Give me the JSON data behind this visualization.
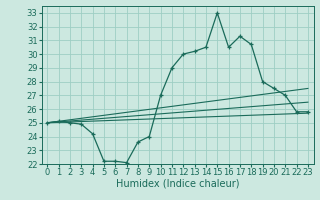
{
  "xlabel": "Humidex (Indice chaleur)",
  "ylabel": "",
  "background_color": "#cce8e0",
  "grid_color": "#9ecec4",
  "line_color": "#1a6b5a",
  "xlim": [
    -0.5,
    23.5
  ],
  "ylim": [
    22,
    33.5
  ],
  "yticks": [
    22,
    23,
    24,
    25,
    26,
    27,
    28,
    29,
    30,
    31,
    32,
    33
  ],
  "xticks": [
    0,
    1,
    2,
    3,
    4,
    5,
    6,
    7,
    8,
    9,
    10,
    11,
    12,
    13,
    14,
    15,
    16,
    17,
    18,
    19,
    20,
    21,
    22,
    23
  ],
  "main_x": [
    0,
    1,
    2,
    3,
    4,
    5,
    6,
    7,
    8,
    9,
    10,
    11,
    12,
    13,
    14,
    15,
    16,
    17,
    18,
    19,
    20,
    21,
    22,
    23
  ],
  "main_y": [
    25.0,
    25.1,
    25.0,
    24.9,
    24.2,
    22.2,
    22.2,
    22.1,
    23.6,
    24.0,
    27.0,
    29.0,
    30.0,
    30.2,
    30.5,
    33.0,
    30.5,
    31.3,
    30.7,
    28.0,
    27.5,
    27.0,
    25.8,
    25.8
  ],
  "line1_x": [
    0,
    23
  ],
  "line1_y": [
    25.0,
    25.7
  ],
  "line2_x": [
    0,
    23
  ],
  "line2_y": [
    25.0,
    26.5
  ],
  "line3_x": [
    0,
    23
  ],
  "line3_y": [
    25.0,
    27.5
  ],
  "fontsize_ticks": 6,
  "fontsize_label": 7
}
